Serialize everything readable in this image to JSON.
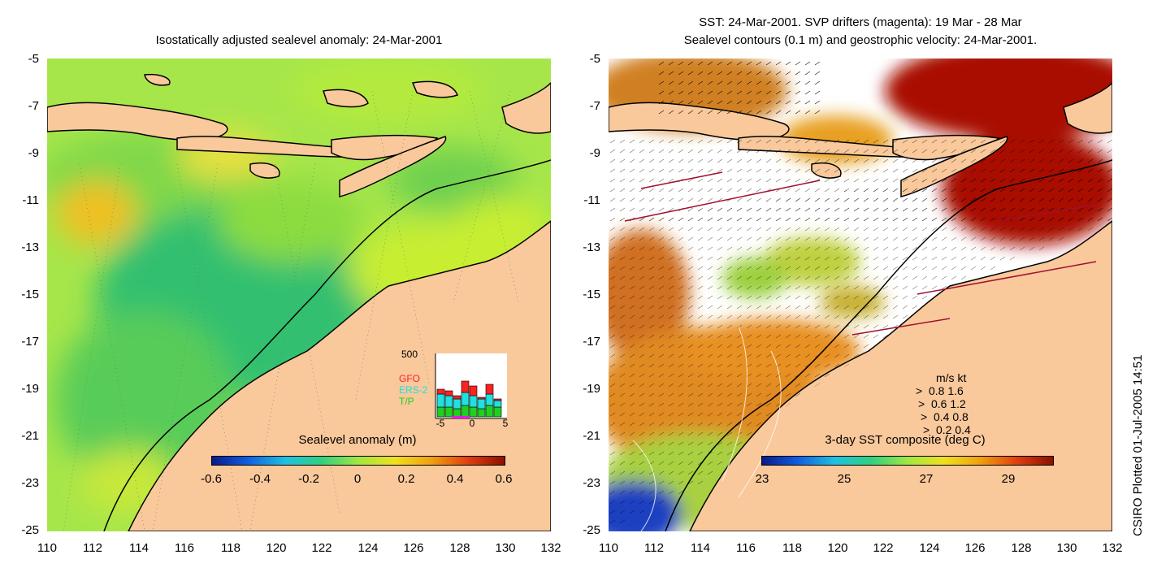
{
  "left_panel": {
    "title": "Isostatically adjusted sealevel anomaly: 24-Mar-2001",
    "y_ticks": [
      "-5",
      "-7",
      "-9",
      "-11",
      "-13",
      "-15",
      "-17",
      "-19",
      "-21",
      "-23",
      "-25"
    ],
    "x_ticks": [
      "110",
      "112",
      "114",
      "116",
      "118",
      "120",
      "122",
      "124",
      "126",
      "128",
      "130",
      "132"
    ],
    "colorbar": {
      "label": "Sealevel anomaly (m)",
      "ticks": [
        "-0.6",
        "-0.4",
        "-0.2",
        "0",
        "0.2",
        "0.4",
        "0.6"
      ]
    },
    "inset": {
      "ymax_label": "500",
      "legend": [
        {
          "name": "GFO",
          "color": "#ff2020"
        },
        {
          "name": "ERS-2",
          "color": "#20e0e0"
        },
        {
          "name": "T/P",
          "color": "#20d020"
        }
      ],
      "x_ticks": [
        "-5",
        "0",
        "5"
      ]
    }
  },
  "right_panel": {
    "title_line1": "SST: 24-Mar-2001. SVP drifters (magenta): 19 Mar - 28 Mar",
    "title_line2": "Sealevel contours (0.1 m) and geostrophic velocity: 24-Mar-2001.",
    "y_ticks": [
      "-5",
      "-7",
      "-9",
      "-11",
      "-13",
      "-15",
      "-17",
      "-19",
      "-21",
      "-23",
      "-25"
    ],
    "x_ticks": [
      "110",
      "112",
      "114",
      "116",
      "118",
      "120",
      "122",
      "124",
      "126",
      "128",
      "130",
      "132"
    ],
    "colorbar": {
      "label": "3-day SST composite (deg C)",
      "ticks": [
        "23",
        "25",
        "27",
        "29"
      ]
    },
    "velocity_key": {
      "header": "m/s  kt",
      "rows": [
        "0.8  1.6",
        "0.6  1.2",
        "0.4  0.8",
        "0.2  0.4"
      ]
    }
  },
  "credit": "CSIRO Plotted 01-Jul-2005 14:51",
  "colors": {
    "land": "#f9c89b",
    "warm_sst": "#a81000",
    "sla_green": "#7fd84a"
  }
}
